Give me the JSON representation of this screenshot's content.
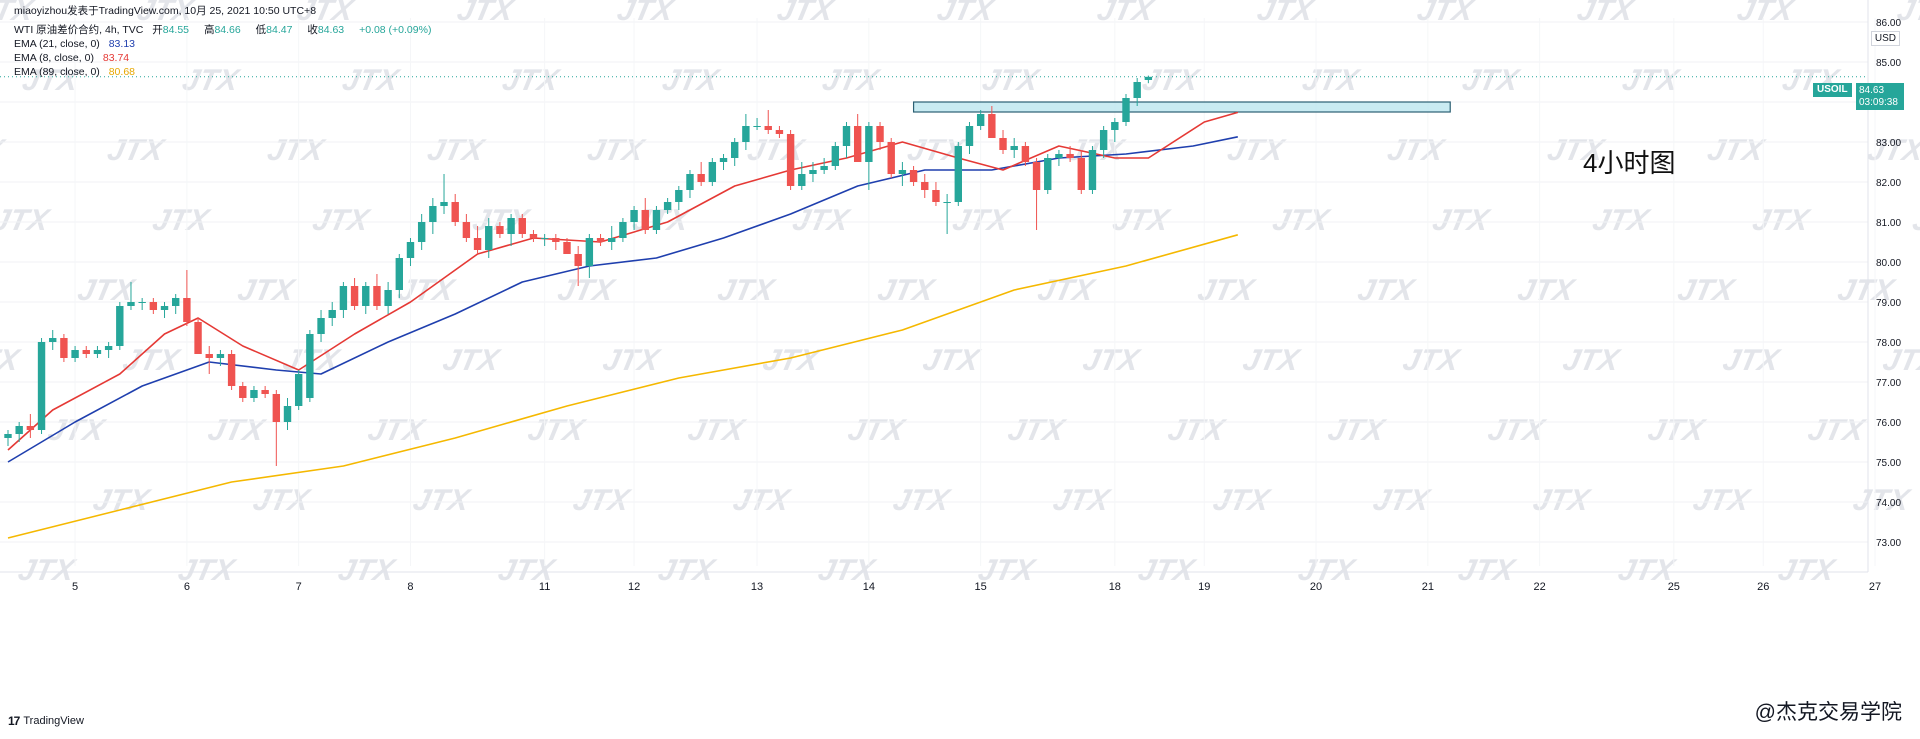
{
  "header": {
    "published_by": "miaoyizhou发表于TradingView.com,  10月 25, 2021 10:50 UTC+8",
    "symbol_line": "WTI 原油差价合约, 4h, TVC",
    "ohlc": {
      "open_label": "开",
      "open": "84.55",
      "high_label": "高",
      "high": "84.66",
      "low_label": "低",
      "low": "84.47",
      "close_label": "收",
      "close": "84.63",
      "change": "+0.08 (+0.09%)"
    },
    "indicators": [
      {
        "label": "EMA (21, close, 0)",
        "value": "83.13",
        "color": "#1f3fae"
      },
      {
        "label": "EMA (8, close, 0)",
        "value": "83.74",
        "color": "#e53935"
      },
      {
        "label": "EMA (89, close, 0)",
        "value": "80.68",
        "color": "#f5b800"
      }
    ]
  },
  "price_tag": {
    "symbol": "USOIL",
    "price": "84.63",
    "countdown": "03:09:38"
  },
  "currency": "USD",
  "annotation": "4小时图",
  "footer": {
    "logo": "TradingView",
    "credit": "@杰克交易学院"
  },
  "watermark": "JTX",
  "colors": {
    "up": "#26a69a",
    "down": "#ef5350",
    "ema21": "#1f3fae",
    "ema8": "#e53935",
    "ema89": "#f5b800",
    "zone_fill": "#bfe8f0",
    "zone_stroke": "#2b5f73"
  },
  "chart_data": {
    "type": "candlestick",
    "title": "WTI 原油差价合约, 4h, TVC",
    "ylim": [
      72.4,
      86.1
    ],
    "yticks": [
      73,
      74,
      75,
      76,
      77,
      78,
      79,
      80,
      81,
      82,
      83,
      84,
      85,
      86
    ],
    "ytick_labels": [
      "73.00",
      "74.00",
      "75.00",
      "76.00",
      "77.00",
      "78.00",
      "79.00",
      "80.00",
      "81.00",
      "82.00",
      "83.00",
      "84.00",
      "85.00",
      "86.00"
    ],
    "x_labels": [
      {
        "label": "5",
        "index": 6
      },
      {
        "label": "6",
        "index": 16
      },
      {
        "label": "7",
        "index": 26
      },
      {
        "label": "8",
        "index": 36
      },
      {
        "label": "11",
        "index": 48
      },
      {
        "label": "12",
        "index": 56
      },
      {
        "label": "13",
        "index": 67
      },
      {
        "label": "14",
        "index": 77
      },
      {
        "label": "15",
        "index": 87
      },
      {
        "label": "18",
        "index": 99
      },
      {
        "label": "19",
        "index": 107
      },
      {
        "label": "20",
        "index": 117
      },
      {
        "label": "21",
        "index": 127
      },
      {
        "label": "22",
        "index": 137
      },
      {
        "label": "25",
        "index": 149
      },
      {
        "label": "26",
        "index": 157
      },
      {
        "label": "27",
        "index": 167
      }
    ],
    "candles": [
      {
        "o": 75.6,
        "h": 75.8,
        "l": 75.4,
        "c": 75.7
      },
      {
        "o": 75.7,
        "h": 76.0,
        "l": 75.5,
        "c": 75.9
      },
      {
        "o": 75.9,
        "h": 76.2,
        "l": 75.6,
        "c": 75.8
      },
      {
        "o": 75.8,
        "h": 78.1,
        "l": 75.7,
        "c": 78.0
      },
      {
        "o": 78.0,
        "h": 78.3,
        "l": 77.8,
        "c": 78.1
      },
      {
        "o": 78.1,
        "h": 78.2,
        "l": 77.5,
        "c": 77.6
      },
      {
        "o": 77.6,
        "h": 77.9,
        "l": 77.5,
        "c": 77.8
      },
      {
        "o": 77.8,
        "h": 77.9,
        "l": 77.6,
        "c": 77.7
      },
      {
        "o": 77.7,
        "h": 77.9,
        "l": 77.6,
        "c": 77.8
      },
      {
        "o": 77.8,
        "h": 78.0,
        "l": 77.6,
        "c": 77.9
      },
      {
        "o": 77.9,
        "h": 79.0,
        "l": 77.8,
        "c": 78.9
      },
      {
        "o": 78.9,
        "h": 79.5,
        "l": 78.8,
        "c": 79.0
      },
      {
        "o": 79.0,
        "h": 79.1,
        "l": 78.8,
        "c": 79.0
      },
      {
        "o": 79.0,
        "h": 79.1,
        "l": 78.7,
        "c": 78.8
      },
      {
        "o": 78.8,
        "h": 79.0,
        "l": 78.6,
        "c": 78.9
      },
      {
        "o": 78.9,
        "h": 79.2,
        "l": 78.7,
        "c": 79.1
      },
      {
        "o": 79.1,
        "h": 79.8,
        "l": 78.4,
        "c": 78.5
      },
      {
        "o": 78.5,
        "h": 78.6,
        "l": 77.8,
        "c": 77.7
      },
      {
        "o": 77.7,
        "h": 77.9,
        "l": 77.2,
        "c": 77.6
      },
      {
        "o": 77.6,
        "h": 77.8,
        "l": 77.4,
        "c": 77.7
      },
      {
        "o": 77.7,
        "h": 77.8,
        "l": 76.8,
        "c": 76.9
      },
      {
        "o": 76.9,
        "h": 77.0,
        "l": 76.5,
        "c": 76.6
      },
      {
        "o": 76.6,
        "h": 76.9,
        "l": 76.5,
        "c": 76.8
      },
      {
        "o": 76.8,
        "h": 76.9,
        "l": 76.6,
        "c": 76.7
      },
      {
        "o": 76.7,
        "h": 76.8,
        "l": 74.9,
        "c": 76.0
      },
      {
        "o": 76.0,
        "h": 76.6,
        "l": 75.8,
        "c": 76.4
      },
      {
        "o": 76.4,
        "h": 77.3,
        "l": 76.3,
        "c": 77.2
      },
      {
        "o": 76.6,
        "h": 78.3,
        "l": 76.5,
        "c": 78.2
      },
      {
        "o": 78.2,
        "h": 78.8,
        "l": 78.0,
        "c": 78.6
      },
      {
        "o": 78.6,
        "h": 79.0,
        "l": 78.4,
        "c": 78.8
      },
      {
        "o": 78.8,
        "h": 79.5,
        "l": 78.6,
        "c": 79.4
      },
      {
        "o": 79.4,
        "h": 79.6,
        "l": 78.8,
        "c": 78.9
      },
      {
        "o": 78.9,
        "h": 79.5,
        "l": 78.7,
        "c": 79.4
      },
      {
        "o": 79.4,
        "h": 79.7,
        "l": 78.8,
        "c": 78.9
      },
      {
        "o": 78.9,
        "h": 79.5,
        "l": 78.7,
        "c": 79.3
      },
      {
        "o": 79.3,
        "h": 80.2,
        "l": 79.1,
        "c": 80.1
      },
      {
        "o": 80.1,
        "h": 80.6,
        "l": 79.9,
        "c": 80.5
      },
      {
        "o": 80.5,
        "h": 81.2,
        "l": 80.3,
        "c": 81.0
      },
      {
        "o": 81.0,
        "h": 81.6,
        "l": 80.7,
        "c": 81.4
      },
      {
        "o": 81.4,
        "h": 82.2,
        "l": 81.2,
        "c": 81.5
      },
      {
        "o": 81.5,
        "h": 81.7,
        "l": 80.9,
        "c": 81.0
      },
      {
        "o": 81.0,
        "h": 81.2,
        "l": 80.5,
        "c": 80.6
      },
      {
        "o": 80.6,
        "h": 80.9,
        "l": 80.2,
        "c": 80.3
      },
      {
        "o": 80.3,
        "h": 81.1,
        "l": 80.1,
        "c": 80.9
      },
      {
        "o": 80.9,
        "h": 81.0,
        "l": 80.6,
        "c": 80.7
      },
      {
        "o": 80.7,
        "h": 81.2,
        "l": 80.4,
        "c": 81.1
      },
      {
        "o": 81.1,
        "h": 81.2,
        "l": 80.6,
        "c": 80.7
      },
      {
        "o": 80.7,
        "h": 80.8,
        "l": 80.5,
        "c": 80.6
      },
      {
        "o": 80.6,
        "h": 80.7,
        "l": 80.4,
        "c": 80.6
      },
      {
        "o": 80.6,
        "h": 80.7,
        "l": 80.3,
        "c": 80.5
      },
      {
        "o": 80.5,
        "h": 80.6,
        "l": 80.2,
        "c": 80.2
      },
      {
        "o": 80.2,
        "h": 80.4,
        "l": 79.4,
        "c": 79.9
      },
      {
        "o": 79.9,
        "h": 80.7,
        "l": 79.6,
        "c": 80.6
      },
      {
        "o": 80.6,
        "h": 80.7,
        "l": 80.4,
        "c": 80.5
      },
      {
        "o": 80.5,
        "h": 80.9,
        "l": 80.3,
        "c": 80.6
      },
      {
        "o": 80.6,
        "h": 81.1,
        "l": 80.5,
        "c": 81.0
      },
      {
        "o": 81.0,
        "h": 81.4,
        "l": 80.8,
        "c": 81.3
      },
      {
        "o": 81.3,
        "h": 81.6,
        "l": 80.7,
        "c": 80.8
      },
      {
        "o": 80.8,
        "h": 81.4,
        "l": 80.7,
        "c": 81.3
      },
      {
        "o": 81.3,
        "h": 81.6,
        "l": 81.2,
        "c": 81.5
      },
      {
        "o": 81.5,
        "h": 81.9,
        "l": 81.3,
        "c": 81.8
      },
      {
        "o": 81.8,
        "h": 82.3,
        "l": 81.6,
        "c": 82.2
      },
      {
        "o": 82.2,
        "h": 82.5,
        "l": 81.9,
        "c": 82.0
      },
      {
        "o": 82.0,
        "h": 82.6,
        "l": 81.9,
        "c": 82.5
      },
      {
        "o": 82.5,
        "h": 82.7,
        "l": 82.3,
        "c": 82.6
      },
      {
        "o": 82.6,
        "h": 83.1,
        "l": 82.4,
        "c": 83.0
      },
      {
        "o": 83.0,
        "h": 83.7,
        "l": 82.8,
        "c": 83.4
      },
      {
        "o": 83.4,
        "h": 83.6,
        "l": 83.3,
        "c": 83.4
      },
      {
        "o": 83.4,
        "h": 83.8,
        "l": 83.2,
        "c": 83.3
      },
      {
        "o": 83.3,
        "h": 83.4,
        "l": 83.1,
        "c": 83.2
      },
      {
        "o": 83.2,
        "h": 83.3,
        "l": 81.8,
        "c": 81.9
      },
      {
        "o": 81.9,
        "h": 82.5,
        "l": 81.8,
        "c": 82.2
      },
      {
        "o": 82.2,
        "h": 82.5,
        "l": 82.0,
        "c": 82.3
      },
      {
        "o": 82.3,
        "h": 82.6,
        "l": 82.2,
        "c": 82.4
      },
      {
        "o": 82.4,
        "h": 83.0,
        "l": 82.3,
        "c": 82.9
      },
      {
        "o": 82.9,
        "h": 83.5,
        "l": 82.6,
        "c": 83.4
      },
      {
        "o": 83.4,
        "h": 83.7,
        "l": 82.5,
        "c": 82.5
      },
      {
        "o": 82.5,
        "h": 83.5,
        "l": 81.8,
        "c": 83.4
      },
      {
        "o": 83.4,
        "h": 83.5,
        "l": 82.8,
        "c": 83.0
      },
      {
        "o": 83.0,
        "h": 83.1,
        "l": 82.1,
        "c": 82.2
      },
      {
        "o": 82.2,
        "h": 82.5,
        "l": 81.9,
        "c": 82.3
      },
      {
        "o": 82.3,
        "h": 82.4,
        "l": 81.9,
        "c": 82.0
      },
      {
        "o": 82.0,
        "h": 82.2,
        "l": 81.6,
        "c": 81.8
      },
      {
        "o": 81.8,
        "h": 82.0,
        "l": 81.4,
        "c": 81.5
      },
      {
        "o": 81.5,
        "h": 81.7,
        "l": 80.7,
        "c": 81.5
      },
      {
        "o": 81.5,
        "h": 83.0,
        "l": 81.4,
        "c": 82.9
      },
      {
        "o": 82.9,
        "h": 83.5,
        "l": 82.7,
        "c": 83.4
      },
      {
        "o": 83.4,
        "h": 83.8,
        "l": 83.3,
        "c": 83.7
      },
      {
        "o": 83.7,
        "h": 83.9,
        "l": 83.1,
        "c": 83.1
      },
      {
        "o": 83.1,
        "h": 83.3,
        "l": 82.7,
        "c": 82.8
      },
      {
        "o": 82.8,
        "h": 83.1,
        "l": 82.6,
        "c": 82.9
      },
      {
        "o": 82.9,
        "h": 83.0,
        "l": 82.4,
        "c": 82.5
      },
      {
        "o": 82.5,
        "h": 82.6,
        "l": 80.8,
        "c": 81.8
      },
      {
        "o": 81.8,
        "h": 82.7,
        "l": 81.7,
        "c": 82.6
      },
      {
        "o": 82.6,
        "h": 82.8,
        "l": 82.4,
        "c": 82.7
      },
      {
        "o": 82.7,
        "h": 82.9,
        "l": 82.5,
        "c": 82.6
      },
      {
        "o": 82.6,
        "h": 82.8,
        "l": 81.7,
        "c": 81.8
      },
      {
        "o": 81.8,
        "h": 82.9,
        "l": 81.7,
        "c": 82.8
      },
      {
        "o": 82.8,
        "h": 83.4,
        "l": 82.6,
        "c": 83.3
      },
      {
        "o": 83.3,
        "h": 83.6,
        "l": 83.0,
        "c": 83.5
      },
      {
        "o": 83.5,
        "h": 84.2,
        "l": 83.4,
        "c": 84.1
      },
      {
        "o": 84.1,
        "h": 84.6,
        "l": 83.9,
        "c": 84.5
      },
      {
        "o": 84.55,
        "h": 84.66,
        "l": 84.47,
        "c": 84.63
      }
    ],
    "ema8": [
      [
        0,
        75.3
      ],
      [
        4,
        76.3
      ],
      [
        10,
        77.2
      ],
      [
        14,
        78.2
      ],
      [
        17,
        78.6
      ],
      [
        21,
        77.9
      ],
      [
        26,
        77.3
      ],
      [
        31,
        78.2
      ],
      [
        36,
        79.0
      ],
      [
        42,
        80.2
      ],
      [
        47,
        80.6
      ],
      [
        53,
        80.5
      ],
      [
        59,
        81.0
      ],
      [
        65,
        81.9
      ],
      [
        70,
        82.3
      ],
      [
        75,
        82.6
      ],
      [
        80,
        83.0
      ],
      [
        85,
        82.6
      ],
      [
        89,
        82.3
      ],
      [
        94,
        82.9
      ],
      [
        99,
        82.6
      ],
      [
        102,
        82.6
      ],
      [
        107,
        83.5
      ],
      [
        110,
        83.74
      ]
    ],
    "ema21": [
      [
        0,
        75.0
      ],
      [
        6,
        76.0
      ],
      [
        12,
        76.9
      ],
      [
        18,
        77.5
      ],
      [
        24,
        77.3
      ],
      [
        28,
        77.2
      ],
      [
        34,
        78.0
      ],
      [
        40,
        78.7
      ],
      [
        46,
        79.5
      ],
      [
        52,
        79.9
      ],
      [
        58,
        80.1
      ],
      [
        64,
        80.6
      ],
      [
        70,
        81.2
      ],
      [
        76,
        81.9
      ],
      [
        82,
        82.3
      ],
      [
        88,
        82.3
      ],
      [
        94,
        82.6
      ],
      [
        100,
        82.7
      ],
      [
        106,
        82.9
      ],
      [
        110,
        83.13
      ]
    ],
    "ema89": [
      [
        0,
        73.1
      ],
      [
        10,
        73.8
      ],
      [
        20,
        74.5
      ],
      [
        30,
        74.9
      ],
      [
        40,
        75.6
      ],
      [
        50,
        76.4
      ],
      [
        60,
        77.1
      ],
      [
        70,
        77.6
      ],
      [
        80,
        78.3
      ],
      [
        90,
        79.3
      ],
      [
        100,
        79.9
      ],
      [
        110,
        80.68
      ]
    ],
    "resistance_zone": {
      "from_index": 81,
      "to_index": 129,
      "low": 83.75,
      "high": 84.0
    },
    "current_price_line": 84.63
  }
}
